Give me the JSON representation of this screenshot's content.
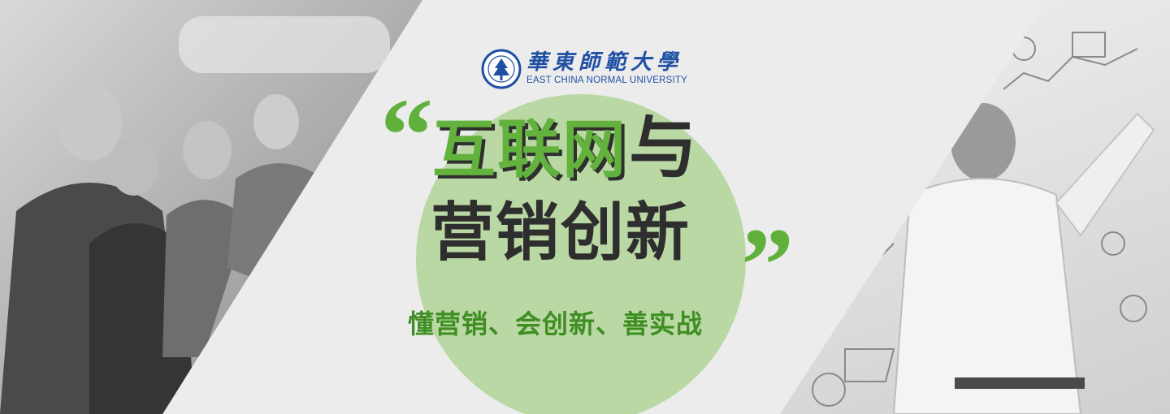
{
  "logo": {
    "name_cn": "華東師範大學",
    "name_en": "EAST CHINA NORMAL UNIVERSITY",
    "seal_icon": "university-seal-icon",
    "color": "#1f4fa3"
  },
  "headline": {
    "open_quote": "“",
    "line1_green": "互联网",
    "line1_dark": "与",
    "line2": "营销创新",
    "close_quote": "”"
  },
  "tagline": "懂营销、会创新、善实战",
  "colors": {
    "accent_green": "#5fb13c",
    "circle_green": "#b6d7a0",
    "dark_text": "#2e2e2e",
    "tagline_green": "#3f8e22"
  },
  "images": {
    "left": "team-meeting-photo",
    "right": "whiteboard-sketch-photo"
  }
}
